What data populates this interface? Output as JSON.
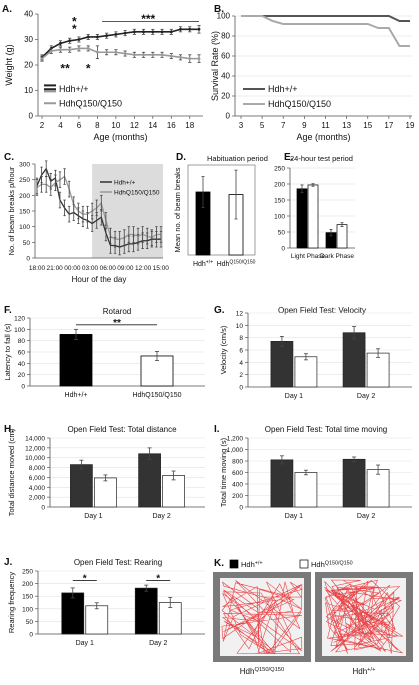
{
  "chart_data": [
    {
      "panel": "A.",
      "type": "line",
      "xlabel": "Age (months)",
      "ylabel": "Weight (g)",
      "x": [
        2,
        3,
        4,
        5,
        6,
        7,
        8,
        9,
        10,
        11,
        12,
        13,
        14,
        15,
        16,
        17,
        18,
        19
      ],
      "xticks": [
        2,
        4,
        6,
        8,
        10,
        12,
        14,
        16,
        18
      ],
      "yticks": [
        0,
        10,
        20,
        30,
        40
      ],
      "ylim": [
        0,
        40
      ],
      "series": [
        {
          "name": "Hdh+/+",
          "color": "#222222",
          "values": [
            23,
            26.5,
            28.5,
            29.5,
            30,
            31,
            31,
            31.5,
            32,
            32.5,
            33,
            33,
            33,
            33,
            33,
            34,
            34,
            34
          ],
          "err": [
            1,
            1,
            1,
            1,
            1,
            1,
            1,
            1,
            1,
            1,
            1,
            1,
            1,
            1,
            1,
            1,
            1,
            1.5
          ]
        },
        {
          "name": "HdhQ150/Q150",
          "color": "#999999",
          "values": [
            22.5,
            25.5,
            26,
            26,
            26.5,
            26.5,
            25,
            25,
            25,
            24.5,
            24,
            24,
            24,
            24,
            23.5,
            23,
            22.5,
            22.5
          ],
          "err": [
            1,
            1,
            1,
            1,
            1,
            1,
            2.5,
            1,
            1,
            1,
            1,
            1,
            1,
            1,
            1,
            1,
            1.5,
            1.5
          ]
        }
      ],
      "annotations": [
        {
          "text": "*",
          "x": 5.5,
          "y": 37.5
        },
        {
          "text": "*",
          "x": 5.5,
          "y": 34.5
        },
        {
          "text": "***",
          "x": 13.5,
          "y": 38.5
        },
        {
          "text": "**",
          "x": 4.5,
          "y": 19
        },
        {
          "text": "*",
          "x": 7,
          "y": 19
        }
      ]
    },
    {
      "panel": "B.",
      "type": "line",
      "xlabel": "Age (months)",
      "ylabel": "Survival Rate (%)",
      "x": [
        3,
        4,
        5,
        6,
        7,
        8,
        9,
        10,
        11,
        12,
        13,
        14,
        15,
        16,
        17,
        18,
        19
      ],
      "xticks": [
        3,
        5,
        7,
        9,
        11,
        13,
        15,
        17,
        19
      ],
      "yticks": [
        0,
        20,
        40,
        60,
        80,
        100
      ],
      "ylim": [
        0,
        100
      ],
      "series": [
        {
          "name": "Hdh+/+",
          "color": "#555555",
          "values": [
            100,
            100,
            100,
            100,
            100,
            100,
            100,
            100,
            100,
            100,
            100,
            100,
            100,
            100,
            100,
            95,
            95
          ]
        },
        {
          "name": "HdhQ150/Q150",
          "color": "#aaaaaa",
          "values": [
            100,
            100,
            100,
            95,
            92,
            92,
            92,
            92,
            92,
            92,
            92,
            92,
            92,
            88,
            88,
            70,
            70
          ]
        }
      ]
    },
    {
      "panel": "C.",
      "type": "line",
      "xlabel": "Hour of the day",
      "ylabel": "No. of beam breaks p/hour",
      "xticks": [
        "18:00",
        "21:00",
        "00:00",
        "03:00",
        "06:00",
        "09:00",
        "12:00",
        "15:00"
      ],
      "yticks": [
        0,
        50,
        100,
        150,
        200,
        250,
        300
      ],
      "ylim": [
        0,
        300
      ],
      "series": [
        {
          "name": "Hdh+/+",
          "color": "#333333",
          "values": [
            230,
            265,
            285,
            245,
            255,
            185,
            160,
            140,
            145,
            135,
            125,
            120,
            110,
            120,
            130,
            80,
            40,
            40,
            35,
            40,
            45,
            45,
            50,
            55,
            55,
            60,
            60,
            60
          ]
        },
        {
          "name": "HdhQ150/Q150",
          "color": "#999999",
          "values": [
            225,
            235,
            235,
            225,
            240,
            250,
            260,
            220,
            170,
            150,
            140,
            140,
            150,
            160,
            175,
            120,
            70,
            60,
            60,
            65,
            75,
            75,
            70,
            75,
            70,
            65,
            75,
            75
          ]
        }
      ]
    },
    {
      "panel": "D.",
      "type": "bar",
      "title": "Habituation period",
      "ylabel": "Mean no. of beam breaks",
      "categories": [
        "Hdh+/+",
        "HdhQ150/Q150"
      ],
      "values": [
        490,
        470
      ],
      "err": [
        120,
        190
      ],
      "colors": [
        "#000000",
        "#ffffff"
      ]
    },
    {
      "panel": "E.",
      "type": "bar",
      "title": "24-hour test period",
      "categories": [
        "Light Phase",
        "Dark Phase"
      ],
      "yticks": [
        0,
        50,
        100,
        150,
        200,
        250
      ],
      "ylim": [
        0,
        250
      ],
      "series": [
        {
          "values": [
            185,
            48
          ],
          "err": [
            12,
            10
          ],
          "color": "#000000"
        },
        {
          "values": [
            197,
            73
          ],
          "err": [
            4,
            6
          ],
          "color": "#ffffff"
        }
      ]
    },
    {
      "panel": "F.",
      "type": "bar",
      "title": "Rotarod",
      "ylabel": "Latency to fall (s)",
      "categories": [
        "Hdh+/+",
        "HdhQ150/Q150"
      ],
      "values": [
        91,
        53
      ],
      "err": [
        9,
        8
      ],
      "yticks": [
        0,
        20,
        40,
        60,
        80,
        100,
        120
      ],
      "ylim": [
        0,
        120
      ],
      "colors": [
        "#000000",
        "#ffffff"
      ],
      "annotation": "**"
    },
    {
      "panel": "G.",
      "type": "bar",
      "title": "Open Field Test: Velocity",
      "ylabel": "Velocity (cm/s)",
      "categories": [
        "Day 1",
        "Day 2"
      ],
      "yticks": [
        0,
        2,
        4,
        6,
        8,
        10,
        12
      ],
      "ylim": [
        0,
        12
      ],
      "series": [
        {
          "values": [
            7.4,
            8.8
          ],
          "err": [
            0.8,
            1.0
          ],
          "color": "#333333"
        },
        {
          "values": [
            4.9,
            5.5
          ],
          "err": [
            0.5,
            0.7
          ],
          "color": "#ffffff"
        }
      ]
    },
    {
      "panel": "H.",
      "type": "bar",
      "title": "Open Field Test: Total distance",
      "ylabel": "Total distance moved (cm)",
      "categories": [
        "Day 1",
        "Day 2"
      ],
      "yticks": [
        0,
        2000,
        4000,
        6000,
        8000,
        10000,
        12000,
        14000
      ],
      "ylim": [
        0,
        14000
      ],
      "ytick_labels": [
        "0",
        "2,000",
        "4,000",
        "6,000",
        "8,000",
        "10,000",
        "12,000",
        "14,000"
      ],
      "series": [
        {
          "values": [
            8600,
            10800
          ],
          "err": [
            900,
            1200
          ],
          "color": "#333333"
        },
        {
          "values": [
            5900,
            6400
          ],
          "err": [
            600,
            900
          ],
          "color": "#ffffff"
        }
      ]
    },
    {
      "panel": "I.",
      "type": "bar",
      "title": "Open Field Test: Total time moving",
      "ylabel": "Total time moving (s)",
      "categories": [
        "Day 1",
        "Day 2"
      ],
      "yticks": [
        0,
        200,
        400,
        600,
        800,
        1000,
        1200
      ],
      "ylim": [
        0,
        1200
      ],
      "ytick_labels": [
        "0",
        "200",
        "400",
        "600",
        "800",
        "1,000",
        "1,200"
      ],
      "series": [
        {
          "values": [
            820,
            830
          ],
          "err": [
            70,
            40
          ],
          "color": "#333333"
        },
        {
          "values": [
            600,
            650
          ],
          "err": [
            40,
            80
          ],
          "color": "#ffffff"
        }
      ]
    },
    {
      "panel": "J.",
      "type": "bar",
      "title": "Open Field Test: Rearing",
      "ylabel": "Rearing frequency",
      "categories": [
        "Day 1",
        "Day 2"
      ],
      "yticks": [
        0,
        50,
        100,
        150,
        200,
        250
      ],
      "ylim": [
        0,
        250
      ],
      "series": [
        {
          "values": [
            163,
            182
          ],
          "err": [
            20,
            12
          ],
          "color": "#000000"
        },
        {
          "values": [
            112,
            125
          ],
          "err": [
            12,
            20
          ],
          "color": "#ffffff"
        }
      ],
      "annotations": [
        "*",
        "*"
      ]
    },
    {
      "panel": "K.",
      "type": "image",
      "legend": [
        {
          "label": "Hdh+/+",
          "color": "#000000"
        },
        {
          "label": "HdhQ150/Q150",
          "color": "#ffffff"
        }
      ],
      "captions": [
        "HdhQ150/Q150",
        "Hdh+/+"
      ]
    }
  ]
}
